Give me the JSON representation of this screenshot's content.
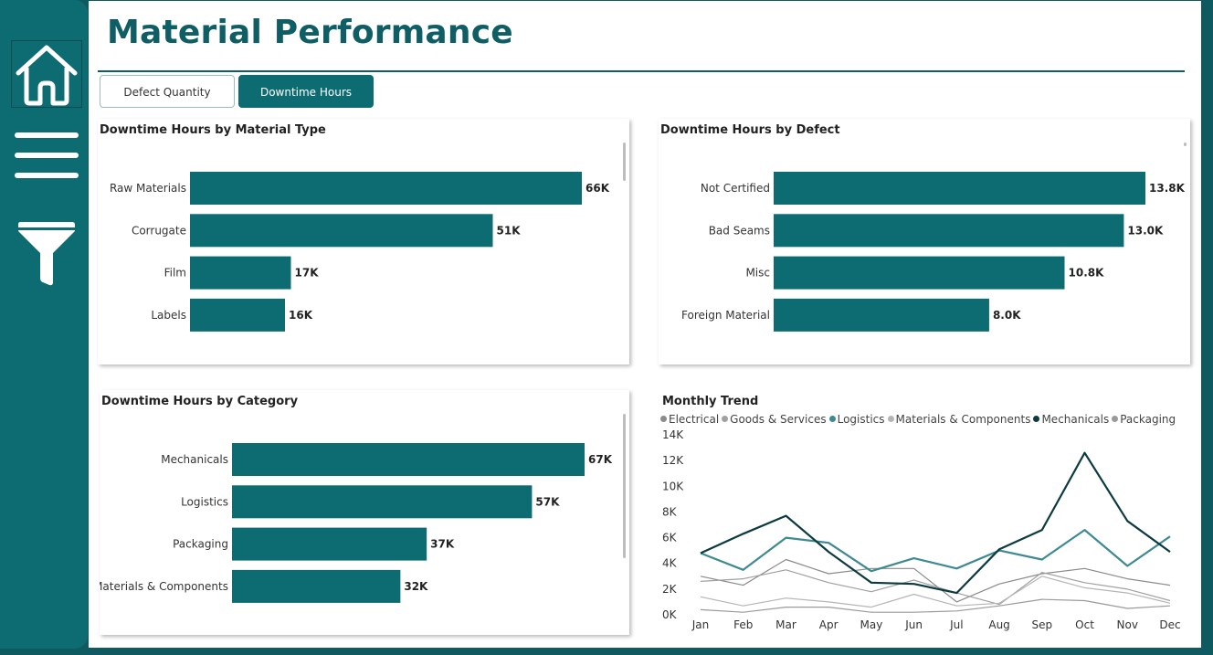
{
  "page": {
    "title": "Material Performance"
  },
  "nav": {
    "items": [
      {
        "name": "home",
        "icon": "home-icon"
      },
      {
        "name": "menu",
        "icon": "hamburger-menu-icon"
      },
      {
        "name": "filter",
        "icon": "filter-funnel-icon"
      }
    ]
  },
  "tabs": [
    {
      "label": "Defect Quantity",
      "active": false
    },
    {
      "label": "Downtime Hours",
      "active": true
    }
  ],
  "colors": {
    "bar": "#0d6b72",
    "accent": "#0f5e66"
  },
  "chart_data": [
    {
      "type": "bar",
      "orientation": "horizontal",
      "title": "Downtime Hours by Material Type",
      "categories": [
        "Raw Materials",
        "Corrugate",
        "Film",
        "Labels"
      ],
      "values": [
        66,
        51,
        17,
        16
      ],
      "data_labels": [
        "66K",
        "51K",
        "17K",
        "16K"
      ]
    },
    {
      "type": "bar",
      "orientation": "horizontal",
      "title": "Downtime Hours by Defect",
      "categories": [
        "Not Certified",
        "Bad Seams",
        "Misc",
        "Foreign Material"
      ],
      "values": [
        13.8,
        13.0,
        10.8,
        8.0
      ],
      "data_labels": [
        "13.8K",
        "13.0K",
        "10.8K",
        "8.0K"
      ]
    },
    {
      "type": "bar",
      "orientation": "horizontal",
      "title": "Downtime Hours by Category",
      "categories": [
        "Mechanicals",
        "Logistics",
        "Packaging",
        "Materials & Components"
      ],
      "values": [
        67,
        57,
        37,
        32
      ],
      "data_labels": [
        "67K",
        "57K",
        "37K",
        "32K"
      ]
    },
    {
      "type": "line",
      "title": "Monthly Trend",
      "x": [
        "Jan",
        "Feb",
        "Mar",
        "Apr",
        "May",
        "Jun",
        "Jul",
        "Aug",
        "Sep",
        "Oct",
        "Nov",
        "Dec"
      ],
      "ylim": [
        0,
        14000
      ],
      "yticks": [
        0,
        2000,
        4000,
        6000,
        8000,
        10000,
        12000,
        14000
      ],
      "ytick_labels": [
        "0K",
        "2K",
        "4K",
        "6K",
        "8K",
        "10K",
        "12K",
        "14K"
      ],
      "legend_position": "top",
      "series": [
        {
          "name": "Electrical",
          "color": "#8a8a8a",
          "values": [
            3000,
            2300,
            4300,
            3200,
            3600,
            3600,
            1000,
            2400,
            3200,
            3600,
            2800,
            2300
          ]
        },
        {
          "name": "Goods & Services",
          "color": "#a0a0a0",
          "values": [
            2600,
            2800,
            3500,
            2500,
            1800,
            2700,
            1700,
            800,
            3300,
            2500,
            2000,
            1100
          ]
        },
        {
          "name": "Logistics",
          "color": "#3e8a93",
          "values": [
            4800,
            3500,
            6000,
            5600,
            3400,
            4400,
            3600,
            5000,
            4300,
            6600,
            3800,
            6100
          ]
        },
        {
          "name": "Materials & Components",
          "color": "#b5b5b5",
          "values": [
            1400,
            700,
            1300,
            1000,
            600,
            1600,
            700,
            900,
            3000,
            2100,
            1700,
            900
          ]
        },
        {
          "name": "Mechanicals",
          "color": "#0b3b40",
          "values": [
            4800,
            6300,
            7700,
            4900,
            2500,
            2400,
            1700,
            5100,
            6600,
            12600,
            7300,
            4900
          ]
        },
        {
          "name": "Packaging",
          "color": "#9a9a9a",
          "values": [
            400,
            200,
            600,
            600,
            200,
            200,
            300,
            700,
            1200,
            1100,
            500,
            700
          ]
        }
      ]
    }
  ]
}
